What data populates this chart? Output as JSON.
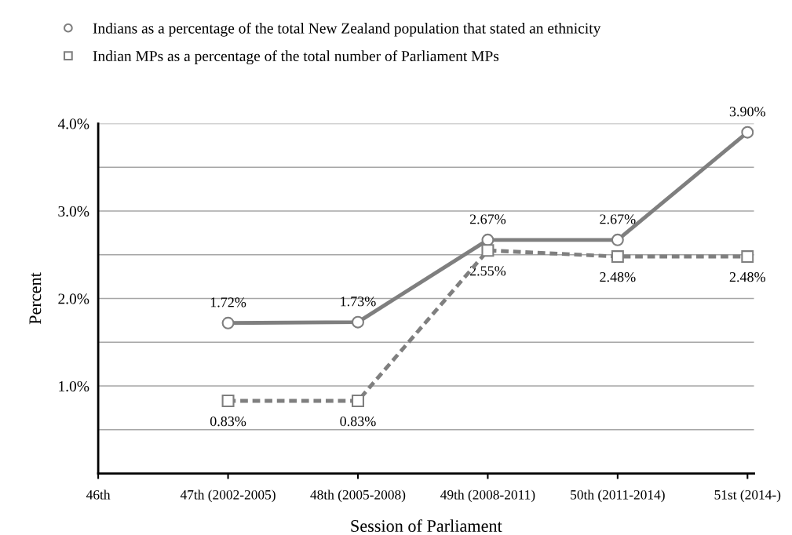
{
  "chart_data": {
    "type": "line",
    "categories": [
      "46th",
      "47th (2002-2005)",
      "48th (2005-2008)",
      "49th (2008-2011)",
      "50th (2011-2014)",
      "51st (2014-)"
    ],
    "series": [
      {
        "name": "Indians as a percentage of the total New Zealand population that stated an ethnicity",
        "color": "#7f7f7f",
        "values": [
          null,
          1.72,
          1.73,
          2.67,
          2.67,
          3.9
        ],
        "marker": "circle",
        "line_style": "solid",
        "value_labels": [
          null,
          "1.72%",
          "1.73%",
          "2.67%",
          "2.67%",
          "3.90%"
        ]
      },
      {
        "name": "Indian MPs as a percentage of the total number of Parliament MPs",
        "color": "#7f7f7f",
        "values": [
          null,
          0.83,
          0.83,
          2.55,
          2.48,
          2.48
        ],
        "marker": "square",
        "line_style": "dashed",
        "value_labels": [
          null,
          "0.83%",
          "0.83%",
          "2.55%",
          "2.48%",
          "2.48%"
        ]
      }
    ],
    "xlabel": "Session of Parliament",
    "ylabel": "Percent",
    "ylim": [
      0,
      4
    ],
    "yticks": [
      {
        "value": 0.5,
        "label": null
      },
      {
        "value": 1.0,
        "label": "1.0%"
      },
      {
        "value": 1.5,
        "label": null
      },
      {
        "value": 2.0,
        "label": "2.0%"
      },
      {
        "value": 2.5,
        "label": null
      },
      {
        "value": 3.0,
        "label": "3.0%"
      },
      {
        "value": 3.5,
        "label": null
      },
      {
        "value": 4.0,
        "label": "4.0%"
      }
    ],
    "grid": "y",
    "legend": "top left"
  }
}
